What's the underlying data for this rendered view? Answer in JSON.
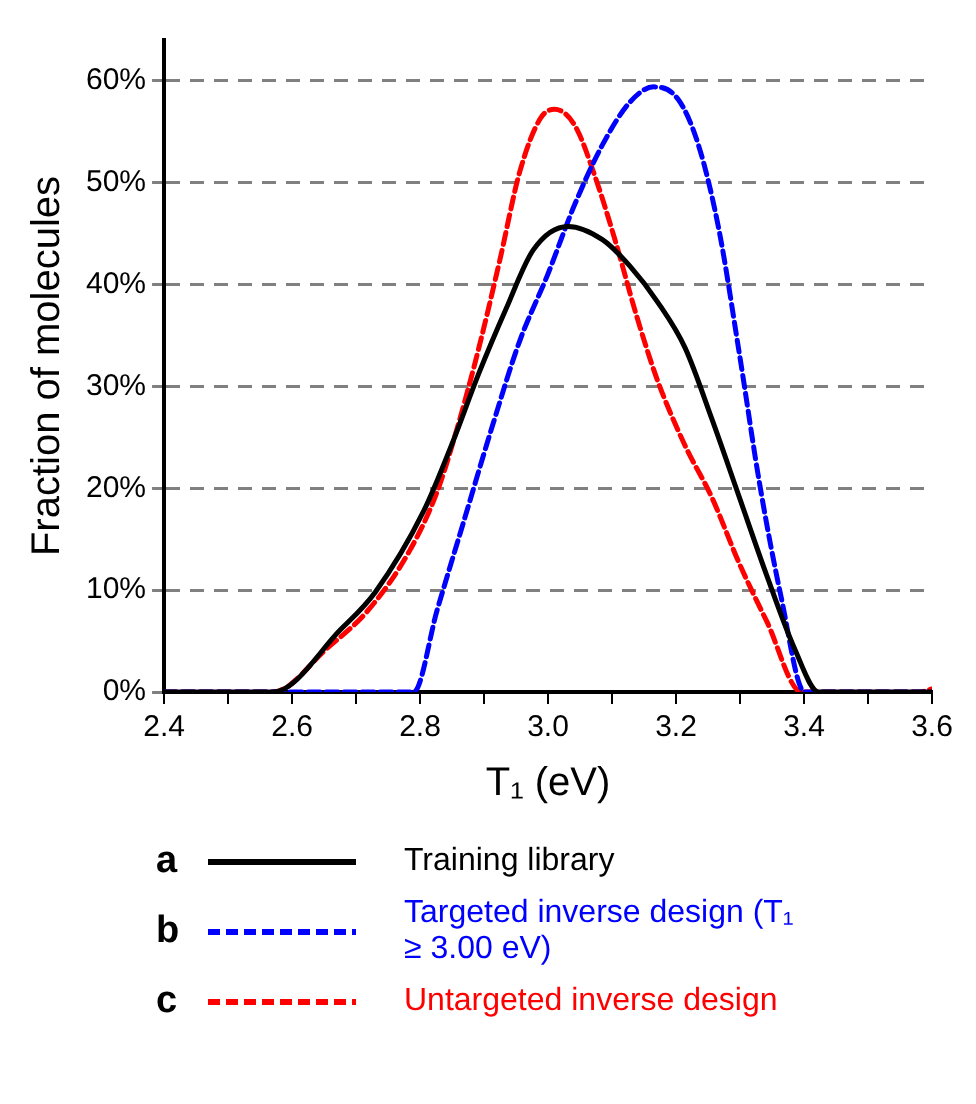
{
  "chart_data": {
    "type": "line",
    "xlabel": "T₁ (eV)",
    "ylabel": "Fraction of molecules",
    "xlim": [
      2.4,
      3.6
    ],
    "xticks": [
      2.4,
      {
        "value": 2.5,
        "label": null
      },
      2.6,
      {
        "value": 2.7,
        "label": null
      },
      2.8,
      {
        "value": 2.9,
        "label": null
      },
      {
        "value": 3.0,
        "label": "3.0"
      },
      {
        "value": 3.1,
        "label": null
      },
      3.2,
      {
        "value": 3.3,
        "label": null
      },
      3.4,
      {
        "value": 3.5,
        "label": null
      },
      3.6
    ],
    "ylim": [
      0,
      64
    ],
    "yticks": [
      {
        "value": 0,
        "label": "0%"
      },
      {
        "value": 10,
        "label": "10%"
      },
      {
        "value": 20,
        "label": "20%"
      },
      {
        "value": 30,
        "label": "30%"
      },
      {
        "value": 40,
        "label": "40%"
      },
      {
        "value": 50,
        "label": "50%"
      },
      {
        "value": 60,
        "label": "60%"
      }
    ],
    "grid": "y",
    "legend": "bottom",
    "marker": "none",
    "annotations": [
      "a",
      "b",
      "c"
    ],
    "series": [
      {
        "name": "Training library",
        "color": "#000000",
        "line_style": "solid",
        "x": [
          2.4,
          2.5,
          2.57,
          2.677,
          2.73,
          2.806,
          2.849,
          2.892,
          2.935,
          2.977,
          3.031,
          3.085,
          3.128,
          3.171,
          3.214,
          3.256,
          3.299,
          3.342,
          3.385,
          3.423,
          3.5,
          3.6
        ],
        "values": [
          0,
          0,
          0,
          6.2,
          9.8,
          17.8,
          24.2,
          31.3,
          37.7,
          43.4,
          45.7,
          44.4,
          41.8,
          38.3,
          33.8,
          26.8,
          19.1,
          11.4,
          4.3,
          0,
          0,
          0
        ]
      },
      {
        "name": "Targeted inverse design (T₁ ≥ 3.00 eV)",
        "color": "#0000ff",
        "line_style": "dashed",
        "x": [
          2.4,
          2.6,
          2.79,
          2.827,
          2.87,
          2.913,
          2.956,
          2.999,
          3.042,
          3.085,
          3.128,
          3.165,
          3.203,
          3.235,
          3.267,
          3.299,
          3.331,
          3.364,
          3.401,
          3.5,
          3.6
        ],
        "values": [
          0,
          0,
          0,
          8.1,
          17.1,
          26.1,
          34.5,
          40.9,
          47.9,
          53.7,
          57.9,
          59.4,
          58.2,
          53.7,
          45.4,
          33.2,
          20.3,
          9.4,
          0,
          0,
          0
        ]
      },
      {
        "name": "Untargeted inverse design",
        "color": "#ff0000",
        "line_style": "dashed",
        "x": [
          2.4,
          2.5,
          2.57,
          2.655,
          2.72,
          2.784,
          2.827,
          2.859,
          2.892,
          2.924,
          2.956,
          2.988,
          3.01,
          3.042,
          3.074,
          3.106,
          3.138,
          3.171,
          3.214,
          3.256,
          3.299,
          3.342,
          3.396,
          3.5,
          3.58,
          3.6
        ],
        "values": [
          0,
          0,
          0,
          4.3,
          8.1,
          13.9,
          19.7,
          26.1,
          33.8,
          42.2,
          51.1,
          56.3,
          57.2,
          55.6,
          50.5,
          44.1,
          37.0,
          30.6,
          24.2,
          19.1,
          12.6,
          6.9,
          0,
          0,
          0,
          0.3
        ]
      }
    ]
  }
}
